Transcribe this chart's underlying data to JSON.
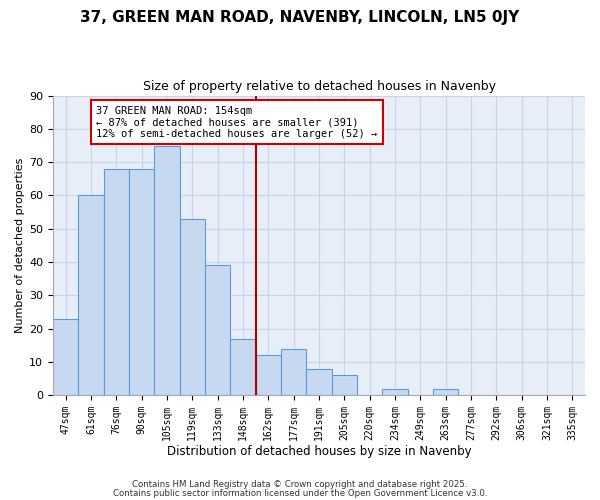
{
  "title": "37, GREEN MAN ROAD, NAVENBY, LINCOLN, LN5 0JY",
  "subtitle": "Size of property relative to detached houses in Navenby",
  "xlabel": "Distribution of detached houses by size in Navenby",
  "ylabel": "Number of detached properties",
  "bin_labels": [
    "47sqm",
    "61sqm",
    "76sqm",
    "90sqm",
    "105sqm",
    "119sqm",
    "133sqm",
    "148sqm",
    "162sqm",
    "177sqm",
    "191sqm",
    "205sqm",
    "220sqm",
    "234sqm",
    "249sqm",
    "263sqm",
    "277sqm",
    "292sqm",
    "306sqm",
    "321sqm",
    "335sqm"
  ],
  "bar_values": [
    23,
    60,
    68,
    68,
    75,
    53,
    39,
    17,
    12,
    14,
    8,
    6,
    0,
    2,
    0,
    2,
    0,
    0,
    0,
    0,
    0
  ],
  "bar_color": "#c6d9f1",
  "bar_edge_color": "#5b9bd5",
  "vline_x": 7.5,
  "vline_color": "#aa0000",
  "annotation_text": "37 GREEN MAN ROAD: 154sqm\n← 87% of detached houses are smaller (391)\n12% of semi-detached houses are larger (52) →",
  "annotation_box_edge": "#cc0000",
  "annotation_box_face": "#ffffff",
  "ylim": [
    0,
    90
  ],
  "yticks": [
    0,
    10,
    20,
    30,
    40,
    50,
    60,
    70,
    80,
    90
  ],
  "grid_color": "#c8d4e8",
  "plot_bg_color": "#e8eef8",
  "fig_bg_color": "#ffffff",
  "footnote1": "Contains HM Land Registry data © Crown copyright and database right 2025.",
  "footnote2": "Contains public sector information licensed under the Open Government Licence v3.0."
}
